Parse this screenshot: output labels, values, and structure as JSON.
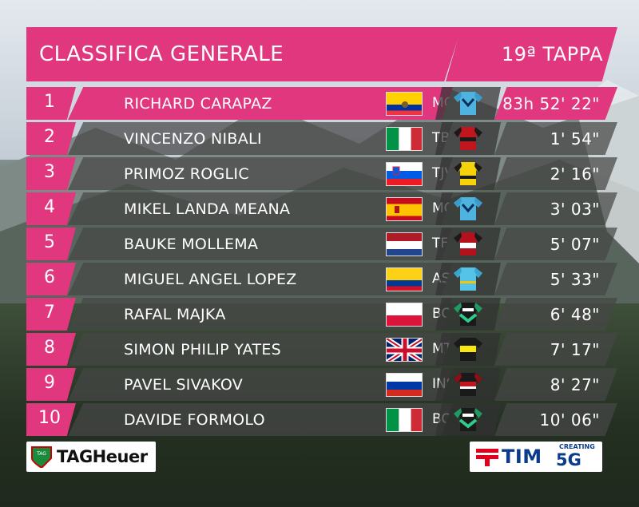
{
  "header": {
    "title": "CLASSIFICA GENERALE",
    "stage": "19ª TAPPA"
  },
  "colors": {
    "accent": "#e0377f",
    "row_bg": "#464646"
  },
  "standings": [
    {
      "pos": "1",
      "name": "RICHARD CARAPAZ",
      "flag": "ecuador",
      "team": "MOV",
      "jersey": "movistar-jersey",
      "time": "83h 52' 22\""
    },
    {
      "pos": "2",
      "name": "VINCENZO NIBALI",
      "flag": "italy",
      "team": "TBM",
      "jersey": "bahrain-merida-jersey",
      "time": "1' 54\""
    },
    {
      "pos": "3",
      "name": "PRIMOZ ROGLIC",
      "flag": "slovenia",
      "team": "TJV",
      "jersey": "jumbo-visma-jersey",
      "time": "2' 16\""
    },
    {
      "pos": "4",
      "name": "MIKEL LANDA MEANA",
      "flag": "spain",
      "team": "MOV",
      "jersey": "movistar-jersey",
      "time": "3' 03\""
    },
    {
      "pos": "5",
      "name": "BAUKE MOLLEMA",
      "flag": "netherlands",
      "team": "TFS",
      "jersey": "trek-segafredo-jersey",
      "time": "5' 07\""
    },
    {
      "pos": "6",
      "name": "MIGUEL ANGEL LOPEZ",
      "flag": "colombia",
      "team": "AST",
      "jersey": "astana-jersey",
      "time": "5' 33\""
    },
    {
      "pos": "7",
      "name": "RAFAL MAJKA",
      "flag": "poland",
      "team": "BOH",
      "jersey": "bora-hansgrohe-jersey",
      "time": "6' 48\""
    },
    {
      "pos": "8",
      "name": "SIMON PHILIP YATES",
      "flag": "uk",
      "team": "MTS",
      "jersey": "mitchelton-scott-jersey",
      "time": "7' 17\""
    },
    {
      "pos": "9",
      "name": "PAVEL SIVAKOV",
      "flag": "russia",
      "team": "INS",
      "jersey": "ineos-jersey",
      "time": "8' 27\""
    },
    {
      "pos": "10",
      "name": "DAVIDE FORMOLO",
      "flag": "italy",
      "team": "BOH",
      "jersey": "bora-hansgrohe-jersey",
      "time": "10' 06\""
    }
  ],
  "sponsors": {
    "left": {
      "text": "TAGHeuer",
      "badge": "TAG"
    },
    "right": {
      "text": "TIM",
      "creating": "CREATING",
      "fiveg": "5G"
    }
  }
}
